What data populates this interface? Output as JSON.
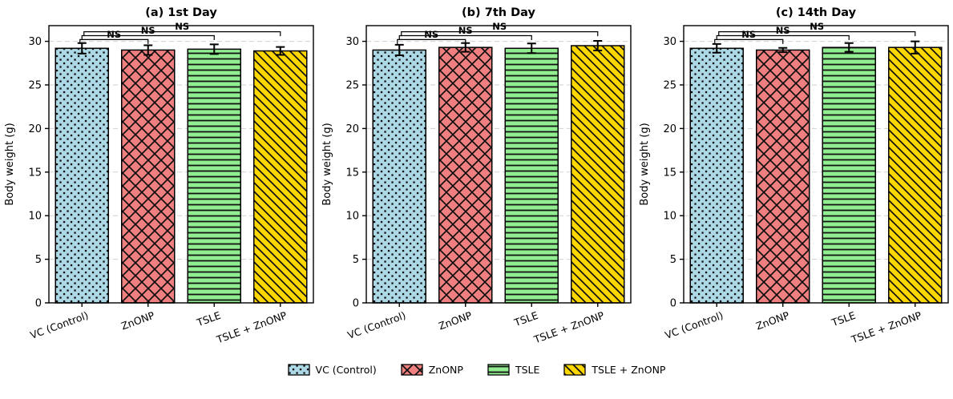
{
  "figure": {
    "background": "#ffffff",
    "text_color": "#000000",
    "grid_color": "#cfcfcf",
    "legend": {
      "position": "bottom-center",
      "items": [
        {
          "label": "VC (Control)",
          "color": "#ADD8E6",
          "hatch": "dots"
        },
        {
          "label": "ZnONP",
          "color": "#F08080",
          "hatch": "cross"
        },
        {
          "label": "TSLE",
          "color": "#90EE90",
          "hatch": "horizontal"
        },
        {
          "label": "TSLE + ZnONP",
          "color": "#FFD700",
          "hatch": "diagonal"
        }
      ]
    }
  },
  "chart_data": [
    {
      "type": "bar",
      "title": "(a) 1st Day",
      "ylabel": "Body weight (g)",
      "xlabel": "",
      "categories": [
        "VC (Control)",
        "ZnONP",
        "TSLE",
        "TSLE + ZnONP"
      ],
      "values": [
        29.2,
        29.0,
        29.1,
        28.9
      ],
      "errors": [
        0.6,
        0.55,
        0.55,
        0.45
      ],
      "ylim": [
        0,
        31.8
      ],
      "yticks": [
        0,
        5,
        10,
        15,
        20,
        25,
        30
      ],
      "grid": "horizontal-dashed",
      "bar_colors": [
        "#ADD8E6",
        "#F08080",
        "#90EE90",
        "#FFD700"
      ],
      "bar_hatches": [
        "dots",
        "cross",
        "horizontal",
        "diagonal"
      ],
      "annotations": [
        {
          "label": "NS",
          "from": 0,
          "to": 1,
          "y": 30.2
        },
        {
          "label": "NS",
          "from": 0,
          "to": 2,
          "y": 30.65
        },
        {
          "label": "NS",
          "from": 0,
          "to": 3,
          "y": 31.1
        }
      ]
    },
    {
      "type": "bar",
      "title": "(b) 7th Day",
      "ylabel": "Body weight (g)",
      "xlabel": "",
      "categories": [
        "VC (Control)",
        "ZnONP",
        "TSLE",
        "TSLE + ZnONP"
      ],
      "values": [
        29.0,
        29.3,
        29.2,
        29.5
      ],
      "errors": [
        0.6,
        0.5,
        0.55,
        0.55
      ],
      "ylim": [
        0,
        31.8
      ],
      "yticks": [
        0,
        5,
        10,
        15,
        20,
        25,
        30
      ],
      "grid": "horizontal-dashed",
      "bar_colors": [
        "#ADD8E6",
        "#F08080",
        "#90EE90",
        "#FFD700"
      ],
      "bar_hatches": [
        "dots",
        "cross",
        "horizontal",
        "diagonal"
      ],
      "annotations": [
        {
          "label": "NS",
          "from": 0,
          "to": 1,
          "y": 30.2
        },
        {
          "label": "NS",
          "from": 0,
          "to": 2,
          "y": 30.65
        },
        {
          "label": "NS",
          "from": 0,
          "to": 3,
          "y": 31.1
        }
      ]
    },
    {
      "type": "bar",
      "title": "(c) 14th Day",
      "ylabel": "Body weight (g)",
      "xlabel": "",
      "categories": [
        "VC (Control)",
        "ZnONP",
        "TSLE",
        "TSLE + ZnONP"
      ],
      "values": [
        29.2,
        29.0,
        29.3,
        29.3
      ],
      "errors": [
        0.5,
        0.25,
        0.5,
        0.7
      ],
      "ylim": [
        0,
        31.8
      ],
      "yticks": [
        0,
        5,
        10,
        15,
        20,
        25,
        30
      ],
      "grid": "horizontal-dashed",
      "bar_colors": [
        "#ADD8E6",
        "#F08080",
        "#90EE90",
        "#FFD700"
      ],
      "bar_hatches": [
        "dots",
        "cross",
        "horizontal",
        "diagonal"
      ],
      "annotations": [
        {
          "label": "NS",
          "from": 0,
          "to": 1,
          "y": 30.2
        },
        {
          "label": "NS",
          "from": 0,
          "to": 2,
          "y": 30.65
        },
        {
          "label": "NS",
          "from": 0,
          "to": 3,
          "y": 31.1
        }
      ]
    }
  ]
}
